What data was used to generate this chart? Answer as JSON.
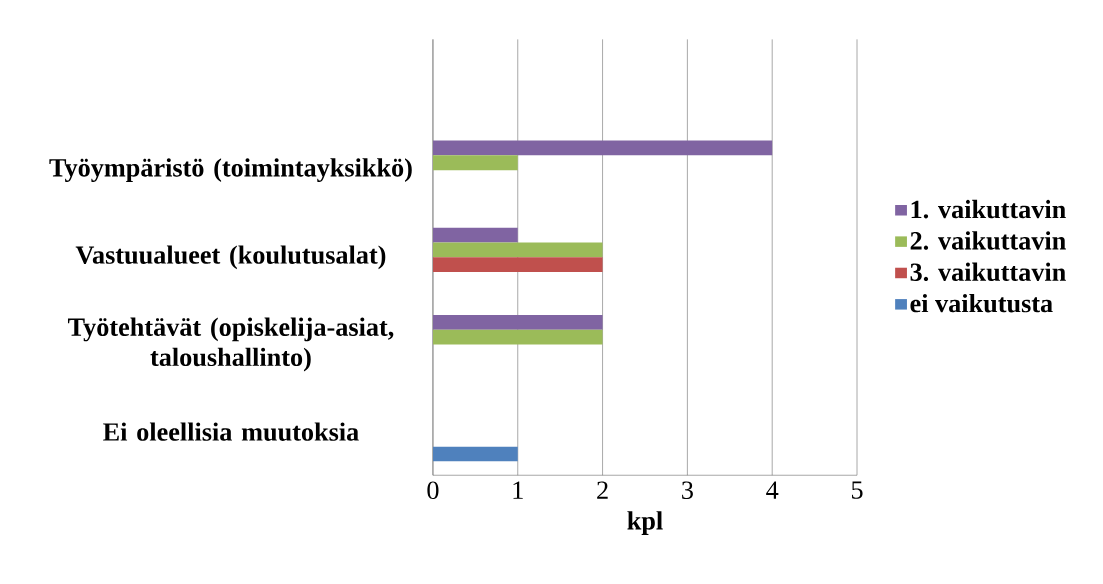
{
  "chart_data": {
    "type": "bar",
    "orientation": "horizontal",
    "xlabel": "kpl",
    "categories": [
      null,
      "Työympäristö (toimintayksikkö)",
      "Vastuualueet (koulutusalat)",
      "Työtehtävät (opiskelija-asiat, taloushallinto)",
      "Ei oleellisia muutoksia"
    ],
    "series": [
      {
        "name": "1. vaikuttavin",
        "color": "#8064a2",
        "values": [
          null,
          4,
          1,
          2,
          null
        ]
      },
      {
        "name": "2. vaikuttavin",
        "color": "#9bbb59",
        "values": [
          null,
          1,
          2,
          2,
          null
        ]
      },
      {
        "name": "3. vaikuttavin",
        "color": "#c0504d",
        "values": [
          null,
          null,
          2,
          null,
          null
        ]
      },
      {
        "name": "ei vaikutusta",
        "color": "#4f81bd",
        "values": [
          null,
          null,
          null,
          null,
          1
        ]
      }
    ],
    "xlim": [
      0,
      5
    ],
    "xticks": [
      0,
      1,
      2,
      3,
      4,
      5
    ],
    "grid": "x",
    "legend": "right"
  }
}
